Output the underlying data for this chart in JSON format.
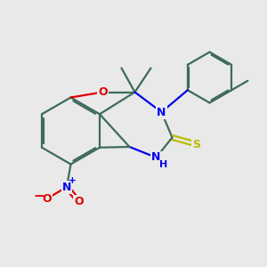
{
  "background_color": "#e9e9e9",
  "bond_color": "#3d6b5a",
  "bond_width": 1.6,
  "N_color": "#0000ee",
  "O_color": "#dd0000",
  "S_color": "#bbbb00",
  "figsize": [
    3.0,
    3.0
  ],
  "dpi": 100,
  "xlim": [
    0,
    10
  ],
  "ylim": [
    0,
    10
  ]
}
